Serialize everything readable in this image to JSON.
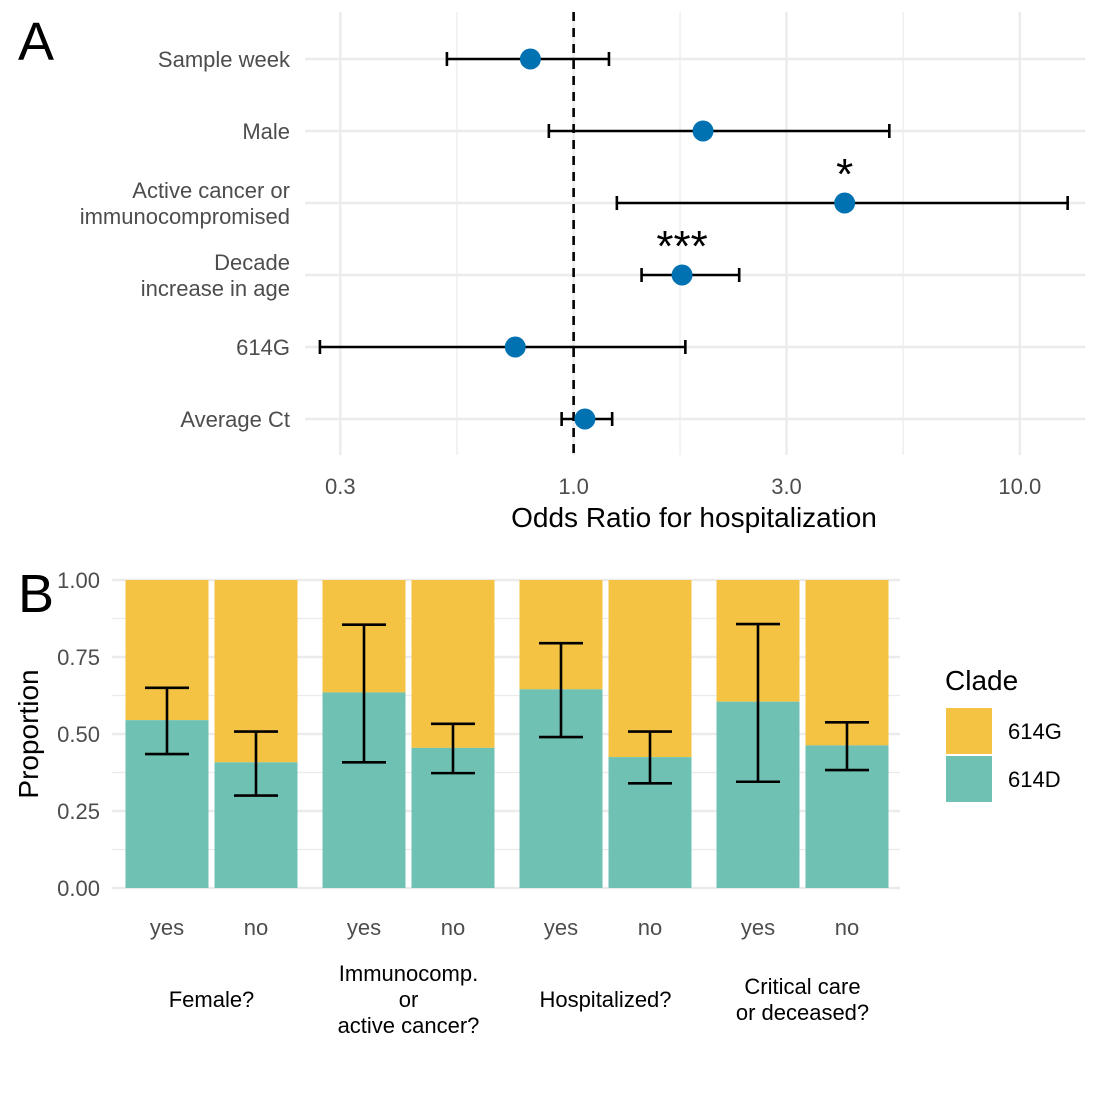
{
  "panel_a": {
    "label": "A",
    "chart_data": {
      "type": "scatter",
      "subtype": "forest-plot",
      "xlabel": "Odds Ratio for hospitalization",
      "xscale": "log",
      "xticks": [
        "0.3",
        "1.0",
        "3.0",
        "10.0"
      ],
      "xlim": [
        0.25,
        14
      ],
      "reference_line": 1.0,
      "rows": [
        {
          "label": [
            "Sample week"
          ],
          "or": 0.8,
          "lo": 0.52,
          "hi": 1.2,
          "sig": ""
        },
        {
          "label": [
            "Male"
          ],
          "or": 1.95,
          "lo": 0.88,
          "hi": 5.1,
          "sig": ""
        },
        {
          "label": [
            "Active cancer or",
            "immunocompromised"
          ],
          "or": 4.05,
          "lo": 1.25,
          "hi": 12.8,
          "sig": "*"
        },
        {
          "label": [
            "Decade",
            "increase in age"
          ],
          "or": 1.75,
          "lo": 1.42,
          "hi": 2.35,
          "sig": "***"
        },
        {
          "label": [
            "614G"
          ],
          "or": 0.74,
          "lo": 0.27,
          "hi": 1.78,
          "sig": ""
        },
        {
          "label": [
            "Average Ct"
          ],
          "or": 1.06,
          "lo": 0.94,
          "hi": 1.22,
          "sig": ""
        }
      ],
      "point_color": "#0072B2"
    }
  },
  "panel_b": {
    "label": "B",
    "chart_data": {
      "type": "bar",
      "subtype": "stacked-proportion",
      "ylabel": "Proportion",
      "ylim": [
        0,
        1
      ],
      "yticks": [
        "0.00",
        "0.25",
        "0.50",
        "0.75",
        "1.00"
      ],
      "legend": {
        "title": "Clade",
        "placement": "right",
        "entries": [
          {
            "name": "614G",
            "color": "#F4C343"
          },
          {
            "name": "614D",
            "color": "#6EC1B3"
          }
        ]
      },
      "groups": [
        {
          "label": [
            "Female?"
          ],
          "bars": [
            {
              "cat": "yes",
              "d": 0.545,
              "lo": 0.435,
              "hi": 0.65
            },
            {
              "cat": "no",
              "d": 0.408,
              "lo": 0.3,
              "hi": 0.508
            }
          ]
        },
        {
          "label": [
            "Immunocomp.",
            "or",
            "active cancer?"
          ],
          "bars": [
            {
              "cat": "yes",
              "d": 0.635,
              "lo": 0.408,
              "hi": 0.855
            },
            {
              "cat": "no",
              "d": 0.455,
              "lo": 0.373,
              "hi": 0.533
            }
          ]
        },
        {
          "label": [
            "Hospitalized?"
          ],
          "bars": [
            {
              "cat": "yes",
              "d": 0.645,
              "lo": 0.49,
              "hi": 0.795
            },
            {
              "cat": "no",
              "d": 0.425,
              "lo": 0.34,
              "hi": 0.508
            }
          ]
        },
        {
          "label": [
            "Critical care",
            "or deceased?"
          ],
          "bars": [
            {
              "cat": "yes",
              "d": 0.605,
              "lo": 0.345,
              "hi": 0.857
            },
            {
              "cat": "no",
              "d": 0.463,
              "lo": 0.383,
              "hi": 0.538
            }
          ]
        }
      ]
    }
  }
}
